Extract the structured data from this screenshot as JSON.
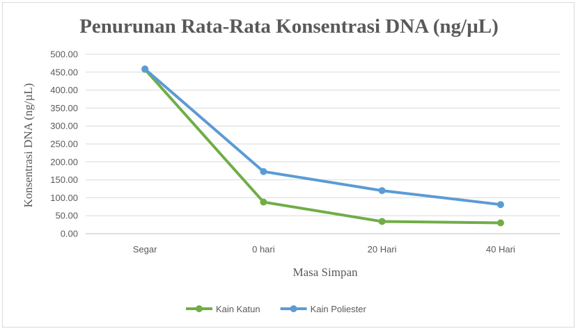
{
  "chart_data": {
    "type": "line",
    "title": "Penurunan Rata-Rata Konsentrasi DNA (ng/µL)",
    "xlabel": "Masa Simpan",
    "ylabel": "Konsentrasi DNA (ng/µL)",
    "categories": [
      "Segar",
      "0 hari",
      "20 Hari",
      "40 Hari"
    ],
    "ylim": [
      0,
      500
    ],
    "y_ticks": [
      "0.00",
      "50.00",
      "100.00",
      "150.00",
      "200.00",
      "250.00",
      "300.00",
      "350.00",
      "400.00",
      "450.00",
      "500.00"
    ],
    "grid": true,
    "legend_position": "bottom",
    "series": [
      {
        "name": "Kain Katun",
        "color": "#70ad47",
        "values": [
          458,
          88,
          34,
          30
        ]
      },
      {
        "name": "Kain Poliester",
        "color": "#5b9bd5",
        "values": [
          459,
          173,
          120,
          81
        ]
      }
    ]
  }
}
